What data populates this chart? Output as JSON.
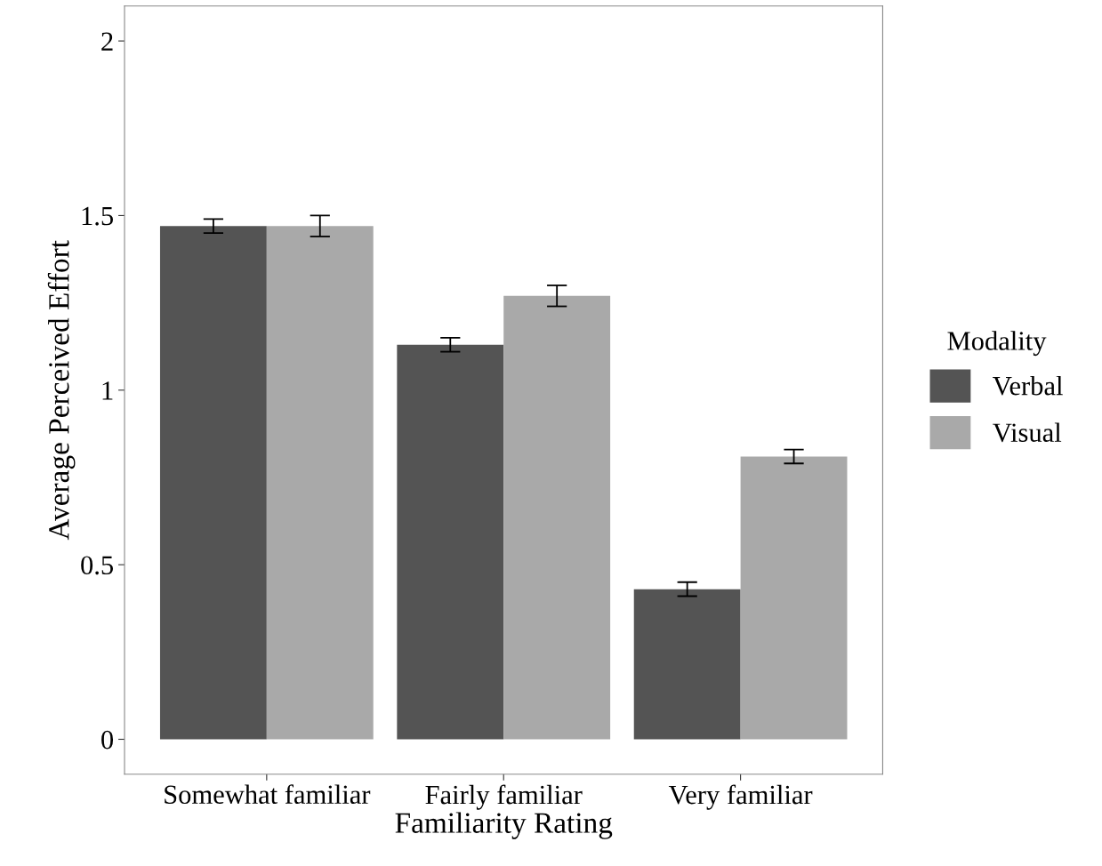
{
  "chart_data": {
    "type": "bar",
    "xlabel": "Familiarity Rating",
    "ylabel": "Average Perceived Effort",
    "legend_title": "Modality",
    "categories": [
      "Somewhat familiar",
      "Fairly familiar",
      "Very familiar"
    ],
    "series": [
      {
        "name": "Verbal",
        "color": "#545454",
        "values": [
          1.47,
          1.13,
          0.43
        ],
        "errors": [
          0.02,
          0.02,
          0.02
        ]
      },
      {
        "name": "Visual",
        "color": "#a9a9a9",
        "values": [
          1.47,
          1.27,
          0.81
        ],
        "errors": [
          0.03,
          0.03,
          0.02
        ]
      }
    ],
    "ylim": [
      -0.1,
      2.1
    ],
    "yticks": [
      0,
      0.5,
      1,
      1.5,
      2
    ],
    "grid": false,
    "legend": "right"
  }
}
